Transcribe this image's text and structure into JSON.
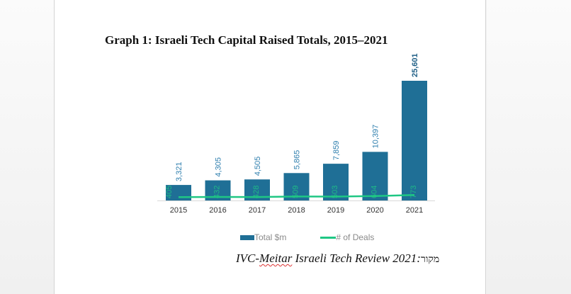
{
  "document": {
    "graph_title": "Graph 1: Israeli Tech Capital Raised Totals, 2015–2021",
    "source": {
      "prefix": "IVC-",
      "misspelled_word": "Meitar",
      "rest": " Israeli Tech Review 2021:",
      "hebrew_label": "מקור"
    }
  },
  "colors": {
    "bar": "#1f6f96",
    "bar_label": "#2f7fae",
    "line": "#1fc784",
    "axis_label": "#333333"
  },
  "chart_data": {
    "type": "bar",
    "title": "Graph 1: Israeli Tech Capital Raised Totals, 2015–2021",
    "categories": [
      "2015",
      "2016",
      "2017",
      "2018",
      "2019",
      "2020",
      "2021"
    ],
    "series": [
      {
        "name": "Total $m",
        "type": "bar",
        "values": [
          3321,
          4305,
          4505,
          5865,
          7859,
          10397,
          25601
        ],
        "labels": [
          "3,321",
          "4,305",
          "4,505",
          "5,865",
          "7,859",
          "10,397",
          "25,601"
        ]
      },
      {
        "name": "# of Deals",
        "type": "line",
        "values": [
          405,
          432,
          428,
          509,
          503,
          604,
          773
        ],
        "labels": [
          "405",
          "432",
          "428",
          "509",
          "503",
          "604",
          "773"
        ]
      }
    ],
    "xlabel": "",
    "ylabel": "",
    "ylim": [
      0,
      26000
    ],
    "grid": false,
    "legend": "bottom"
  },
  "legend": {
    "items": [
      "Total $m",
      "# of Deals"
    ]
  }
}
